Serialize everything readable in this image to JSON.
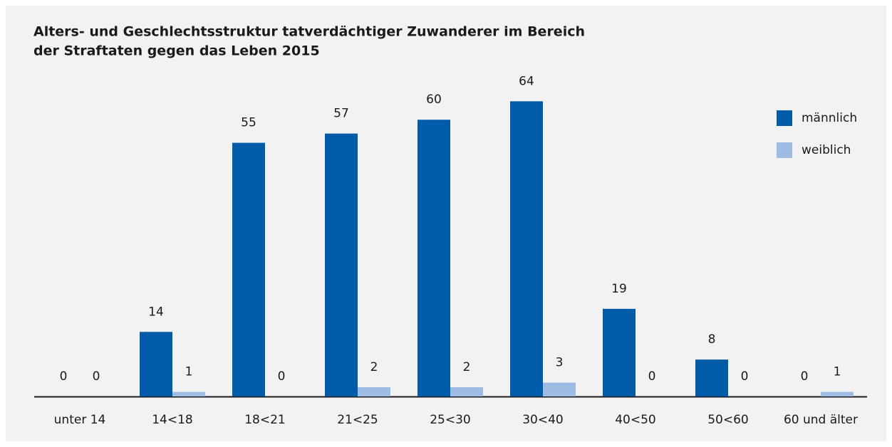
{
  "chart_data": {
    "type": "bar",
    "title": [
      "Alters- und Geschlechtsstruktur tatverdächtiger Zuwanderer im Bereich",
      "der Straftaten gegen das Leben 2015"
    ],
    "categories": [
      "unter 14",
      "14<18",
      "18<21",
      "21<25",
      "25<30",
      "30<40",
      "40<50",
      "50<60",
      "60 und älter"
    ],
    "series": [
      {
        "name": "männlich",
        "color": "#005ca9",
        "values": [
          0,
          14,
          55,
          57,
          60,
          64,
          19,
          8,
          0
        ]
      },
      {
        "name": "weiblich",
        "color": "#9dbde4",
        "values": [
          0,
          1,
          0,
          2,
          2,
          3,
          0,
          0,
          1
        ]
      }
    ],
    "legend": "top-right"
  }
}
